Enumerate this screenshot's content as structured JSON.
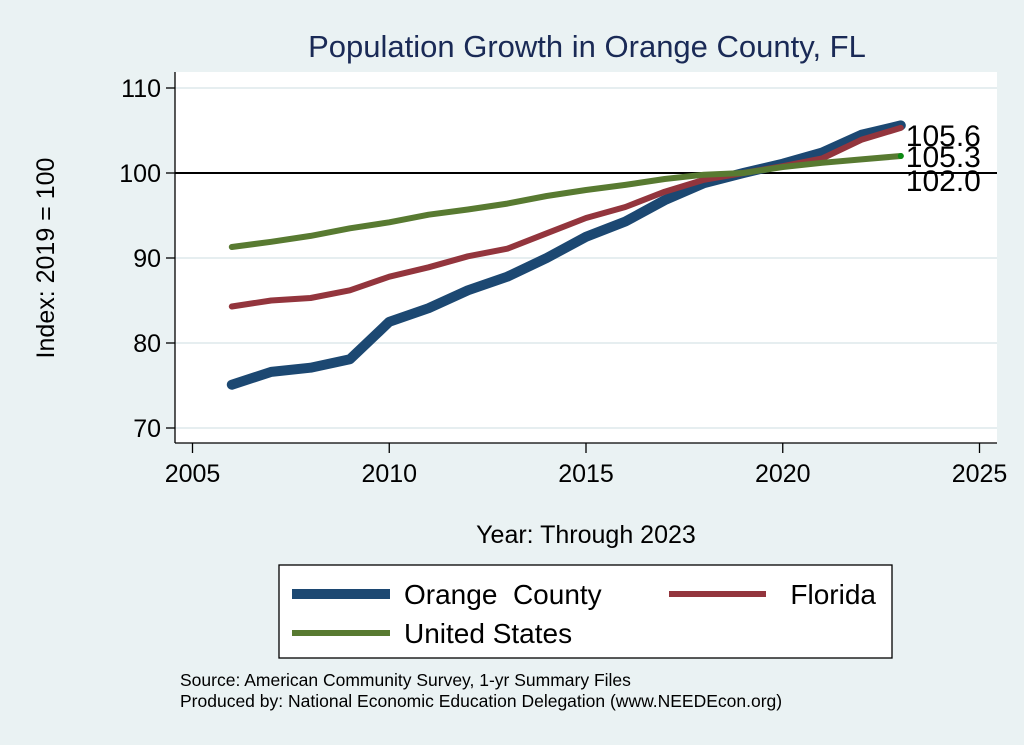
{
  "chart_data": {
    "type": "line",
    "title": "Population Growth in Orange County, FL",
    "xlabel": "Year: Through 2023",
    "ylabel": "Index: 2019 = 100",
    "xlim": [
      2005,
      2025
    ],
    "ylim": [
      70,
      110
    ],
    "x_ticks": [
      2005,
      2010,
      2015,
      2020,
      2025
    ],
    "y_ticks": [
      70,
      80,
      90,
      100,
      110
    ],
    "grid": "horizontal",
    "reference_line": 100,
    "legend_position": "bottom",
    "x": [
      2006,
      2007,
      2008,
      2009,
      2010,
      2011,
      2012,
      2013,
      2014,
      2015,
      2016,
      2017,
      2018,
      2019,
      2020,
      2021,
      2022,
      2023
    ],
    "series": [
      {
        "name": "Orange  County",
        "color": "#1c4872",
        "values": [
          75.1,
          76.6,
          77.1,
          78.1,
          82.5,
          84.1,
          86.2,
          87.8,
          90.0,
          92.5,
          94.3,
          96.8,
          98.8,
          100.0,
          101.1,
          102.4,
          104.5,
          105.6
        ],
        "end_label": "105.6"
      },
      {
        "name": "Florida",
        "color": "#93353d",
        "values": [
          84.3,
          85.0,
          85.3,
          86.2,
          87.8,
          88.9,
          90.2,
          91.1,
          92.9,
          94.7,
          96.0,
          97.8,
          99.2,
          100.0,
          100.8,
          101.7,
          103.9,
          105.3
        ],
        "end_label": "105.3"
      },
      {
        "name": "United States",
        "color": "#587a31",
        "values": [
          91.3,
          91.9,
          92.6,
          93.5,
          94.2,
          95.1,
          95.7,
          96.4,
          97.3,
          98.0,
          98.6,
          99.3,
          99.8,
          100.0,
          100.7,
          101.2,
          101.6,
          102.0
        ],
        "end_label": "102.0"
      }
    ],
    "notes": [
      "Source: American Community Survey, 1-yr Summary Files",
      "Produced by: National Economic Education Delegation (www.NEEDEcon.org)"
    ]
  }
}
